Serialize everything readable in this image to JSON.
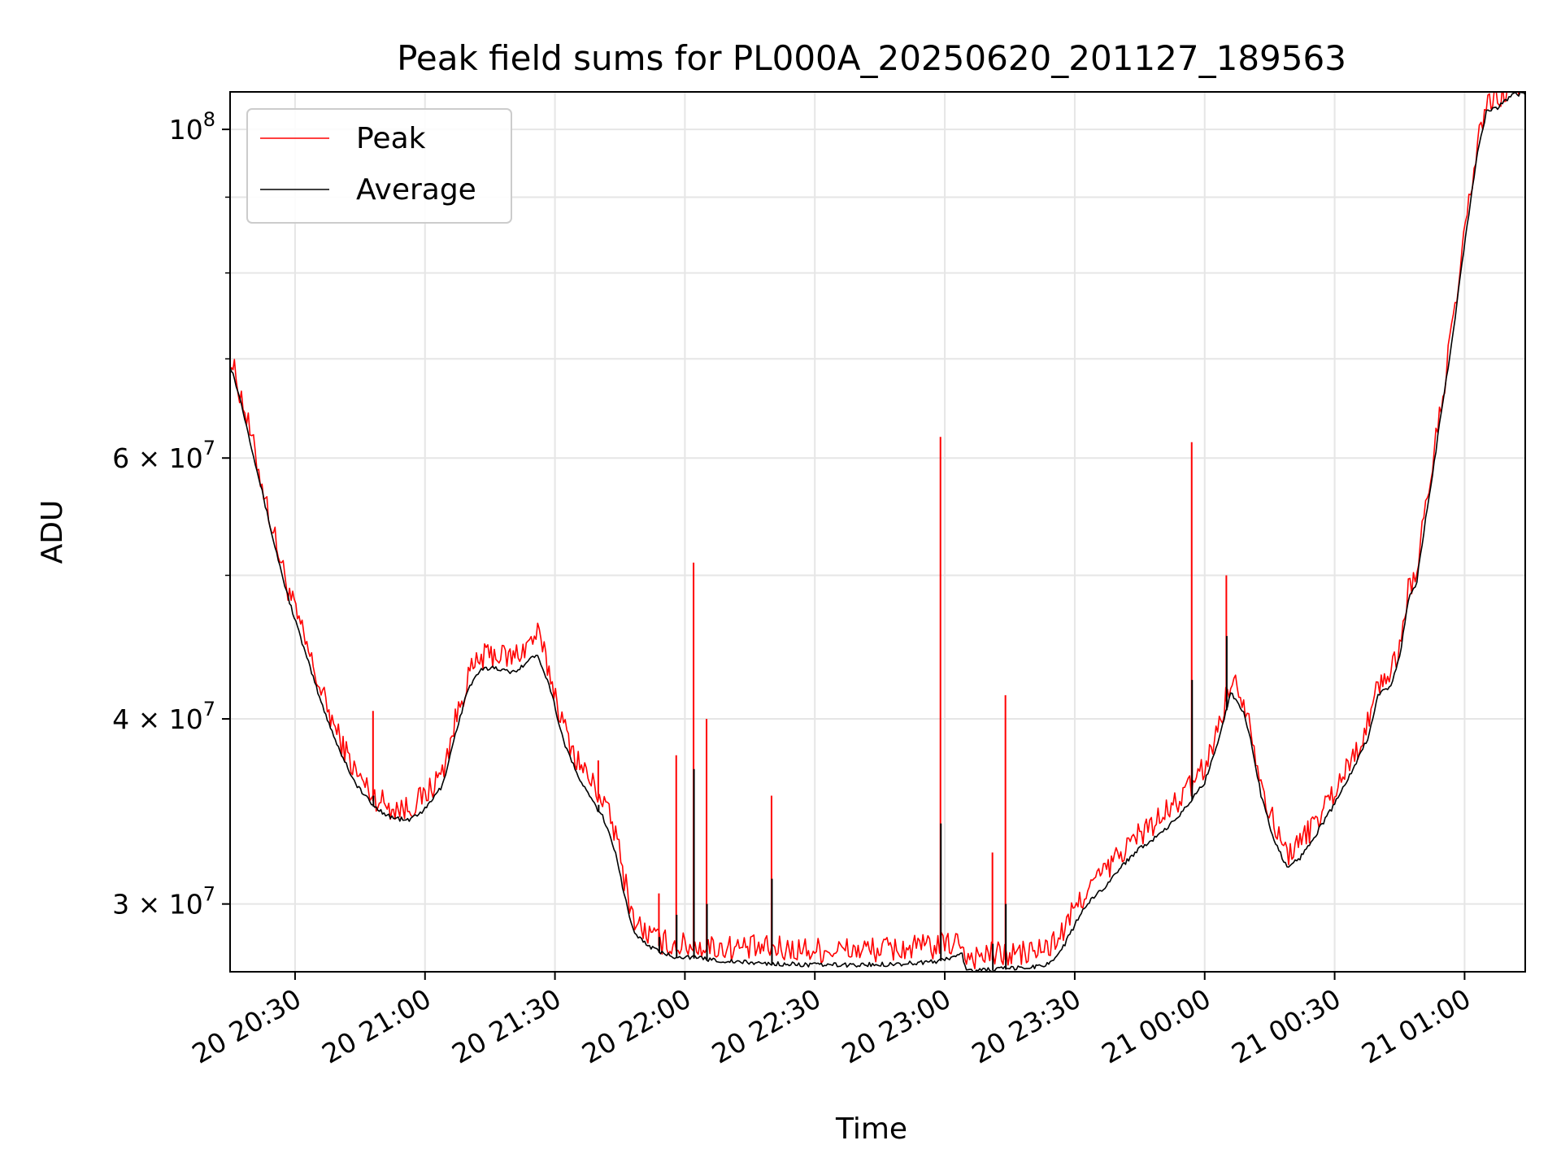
{
  "chart_data": {
    "type": "line",
    "title": "Peak field sums for PL000A_20250620_201127_189563",
    "xlabel": "Time",
    "ylabel": "ADU",
    "y_scale": "log",
    "ylim": [
      27000000,
      106000000
    ],
    "xlim": [
      "2025-06-20 20:15",
      "2025-06-21 01:14"
    ],
    "grid": true,
    "legend_position": "upper left",
    "x_ticks": [
      {
        "value": "2025-06-20 20:30",
        "label": "20 20:30"
      },
      {
        "value": "2025-06-20 21:00",
        "label": "20 21:00"
      },
      {
        "value": "2025-06-20 21:30",
        "label": "20 21:30"
      },
      {
        "value": "2025-06-20 22:00",
        "label": "20 22:00"
      },
      {
        "value": "2025-06-20 22:30",
        "label": "20 22:30"
      },
      {
        "value": "2025-06-20 23:00",
        "label": "20 23:00"
      },
      {
        "value": "2025-06-20 23:30",
        "label": "20 23:30"
      },
      {
        "value": "2025-06-21 00:00",
        "label": "21 00:00"
      },
      {
        "value": "2025-06-21 00:30",
        "label": "21 00:30"
      },
      {
        "value": "2025-06-21 01:00",
        "label": "21 01:00"
      }
    ],
    "y_major_ticks": [
      {
        "value": 30000000,
        "mant": "3",
        "exp": "7"
      },
      {
        "value": 40000000,
        "mant": "4",
        "exp": "7"
      },
      {
        "value": 60000000,
        "mant": "6",
        "exp": "7"
      },
      {
        "value": 100000000,
        "mant": "",
        "exp": "8"
      }
    ],
    "y_minor_ticks": [
      50000000,
      70000000,
      80000000,
      90000000
    ],
    "series": [
      {
        "name": "Peak",
        "color": "#ff0000",
        "points": [
          [
            "2025-06-20 20:15",
            69500000
          ],
          [
            "2025-06-20 20:16",
            68000000
          ],
          [
            "2025-06-20 20:18",
            64800000
          ],
          [
            "2025-06-20 20:20",
            61200000
          ],
          [
            "2025-06-20 20:22",
            57800000
          ],
          [
            "2025-06-20 20:25",
            53000000
          ],
          [
            "2025-06-20 20:28",
            49000000
          ],
          [
            "2025-06-20 20:32",
            45000000
          ],
          [
            "2025-06-20 20:36",
            41400000
          ],
          [
            "2025-06-20 20:40",
            38600000
          ],
          [
            "2025-06-20 20:44",
            36500000
          ],
          [
            "2025-06-20 20:48",
            35200000
          ],
          [
            "2025-06-20 20:52",
            34600000
          ],
          [
            "2025-06-20 20:56",
            34500000
          ],
          [
            "2025-06-20 21:00",
            35200000
          ],
          [
            "2025-06-20 21:04",
            36500000
          ],
          [
            "2025-06-20 21:07",
            39500000
          ],
          [
            "2025-06-20 21:10",
            42400000
          ],
          [
            "2025-06-20 21:13",
            43600000
          ],
          [
            "2025-06-20 21:16",
            43900000
          ],
          [
            "2025-06-20 21:20",
            43600000
          ],
          [
            "2025-06-20 21:23",
            44300000
          ],
          [
            "2025-06-20 21:26",
            45300000
          ],
          [
            "2025-06-20 21:29",
            42400000
          ],
          [
            "2025-06-20 21:32",
            39200000
          ],
          [
            "2025-06-20 21:35",
            37300000
          ],
          [
            "2025-06-20 21:38",
            36100000
          ],
          [
            "2025-06-20 21:41",
            35000000
          ],
          [
            "2025-06-20 21:44",
            33200000
          ],
          [
            "2025-06-20 21:46",
            31000000
          ],
          [
            "2025-06-20 21:48",
            29200000
          ],
          [
            "2025-06-20 21:50",
            28600000
          ],
          [
            "2025-06-20 21:54",
            28100000
          ],
          [
            "2025-06-20 21:58",
            27900000
          ],
          [
            "2025-06-20 22:00",
            27900000
          ],
          [
            "2025-06-20 22:05",
            27850000
          ],
          [
            "2025-06-20 22:10",
            27800000
          ],
          [
            "2025-06-20 22:20",
            27750000
          ],
          [
            "2025-06-20 22:30",
            27700000
          ],
          [
            "2025-06-20 22:40",
            27700000
          ],
          [
            "2025-06-20 22:50",
            27750000
          ],
          [
            "2025-06-20 22:58",
            27850000
          ],
          [
            "2025-06-20 23:00",
            27900000
          ],
          [
            "2025-06-20 23:04",
            28100000
          ],
          [
            "2025-06-20 23:05",
            27400000
          ],
          [
            "2025-06-20 23:10",
            27500000
          ],
          [
            "2025-06-20 23:15",
            27500000
          ],
          [
            "2025-06-20 23:20",
            27600000
          ],
          [
            "2025-06-20 23:24",
            27800000
          ],
          [
            "2025-06-20 23:27",
            28400000
          ],
          [
            "2025-06-20 23:30",
            29500000
          ],
          [
            "2025-06-20 23:33",
            30500000
          ],
          [
            "2025-06-20 23:37",
            31300000
          ],
          [
            "2025-06-20 23:41",
            32300000
          ],
          [
            "2025-06-20 23:45",
            33200000
          ],
          [
            "2025-06-20 23:50",
            34000000
          ],
          [
            "2025-06-20 23:55",
            35200000
          ],
          [
            "2025-06-21 00:00",
            36800000
          ],
          [
            "2025-06-21 00:03",
            39000000
          ],
          [
            "2025-06-21 00:06",
            42200000
          ],
          [
            "2025-06-21 00:09",
            41000000
          ],
          [
            "2025-06-21 00:11",
            38800000
          ],
          [
            "2025-06-21 00:13",
            36000000
          ],
          [
            "2025-06-21 00:16",
            33600000
          ],
          [
            "2025-06-21 00:19",
            32200000
          ],
          [
            "2025-06-21 00:22",
            32700000
          ],
          [
            "2025-06-21 00:26",
            34000000
          ],
          [
            "2025-06-21 00:30",
            35500000
          ],
          [
            "2025-06-21 00:35",
            37800000
          ],
          [
            "2025-06-21 00:38",
            39500000
          ],
          [
            "2025-06-21 00:40",
            42000000
          ],
          [
            "2025-06-21 00:43",
            42500000
          ],
          [
            "2025-06-21 00:45",
            44500000
          ],
          [
            "2025-06-21 00:47",
            48500000
          ],
          [
            "2025-06-21 00:49",
            50000000
          ],
          [
            "2025-06-21 00:51",
            55000000
          ],
          [
            "2025-06-21 00:53",
            60000000
          ],
          [
            "2025-06-21 00:55",
            66000000
          ],
          [
            "2025-06-21 00:57",
            72000000
          ],
          [
            "2025-06-21 00:59",
            80000000
          ],
          [
            "2025-06-21 01:01",
            88000000
          ],
          [
            "2025-06-21 01:03",
            97000000
          ],
          [
            "2025-06-21 01:05",
            103000000
          ],
          [
            "2025-06-21 01:08",
            104000000
          ],
          [
            "2025-06-21 01:11",
            106000000
          ],
          [
            "2025-06-21 01:14",
            106000000
          ]
        ]
      },
      {
        "name": "Average",
        "color": "#000000",
        "points": [
          [
            "2025-06-20 20:15",
            69200000
          ],
          [
            "2025-06-20 20:16",
            67800000
          ],
          [
            "2025-06-20 20:18",
            64500000
          ],
          [
            "2025-06-20 20:20",
            60900000
          ],
          [
            "2025-06-20 20:22",
            57500000
          ],
          [
            "2025-06-20 20:25",
            52700000
          ],
          [
            "2025-06-20 20:28",
            48700000
          ],
          [
            "2025-06-20 20:32",
            44600000
          ],
          [
            "2025-06-20 20:36",
            41000000
          ],
          [
            "2025-06-20 20:40",
            38200000
          ],
          [
            "2025-06-20 20:44",
            36100000
          ],
          [
            "2025-06-20 20:48",
            34900000
          ],
          [
            "2025-06-20 20:52",
            34300000
          ],
          [
            "2025-06-20 20:56",
            34100000
          ],
          [
            "2025-06-20 21:00",
            34700000
          ],
          [
            "2025-06-20 21:04",
            36000000
          ],
          [
            "2025-06-20 21:07",
            39000000
          ],
          [
            "2025-06-20 21:10",
            41900000
          ],
          [
            "2025-06-20 21:13",
            43100000
          ],
          [
            "2025-06-20 21:16",
            43300000
          ],
          [
            "2025-06-20 21:20",
            42900000
          ],
          [
            "2025-06-20 21:23",
            43500000
          ],
          [
            "2025-06-20 21:26",
            44200000
          ],
          [
            "2025-06-20 21:29",
            41800000
          ],
          [
            "2025-06-20 21:32",
            38600000
          ],
          [
            "2025-06-20 21:35",
            36700000
          ],
          [
            "2025-06-20 21:38",
            35400000
          ],
          [
            "2025-06-20 21:41",
            34300000
          ],
          [
            "2025-06-20 21:44",
            32500000
          ],
          [
            "2025-06-20 21:46",
            30400000
          ],
          [
            "2025-06-20 21:48",
            28800000
          ],
          [
            "2025-06-20 21:50",
            28300000
          ],
          [
            "2025-06-20 21:54",
            27800000
          ],
          [
            "2025-06-20 21:58",
            27600000
          ],
          [
            "2025-06-20 22:00",
            27600000
          ],
          [
            "2025-06-20 22:05",
            27500000
          ],
          [
            "2025-06-20 22:10",
            27400000
          ],
          [
            "2025-06-20 22:20",
            27300000
          ],
          [
            "2025-06-20 22:30",
            27250000
          ],
          [
            "2025-06-20 22:40",
            27250000
          ],
          [
            "2025-06-20 22:50",
            27300000
          ],
          [
            "2025-06-20 22:58",
            27400000
          ],
          [
            "2025-06-20 23:00",
            27500000
          ],
          [
            "2025-06-20 23:04",
            27700000
          ],
          [
            "2025-06-20 23:05",
            27000000
          ],
          [
            "2025-06-20 23:10",
            27050000
          ],
          [
            "2025-06-20 23:15",
            27100000
          ],
          [
            "2025-06-20 23:20",
            27150000
          ],
          [
            "2025-06-20 23:24",
            27300000
          ],
          [
            "2025-06-20 23:27",
            27900000
          ],
          [
            "2025-06-20 23:30",
            29000000
          ],
          [
            "2025-06-20 23:33",
            30000000
          ],
          [
            "2025-06-20 23:37",
            30800000
          ],
          [
            "2025-06-20 23:41",
            31800000
          ],
          [
            "2025-06-20 23:45",
            32700000
          ],
          [
            "2025-06-20 23:50",
            33400000
          ],
          [
            "2025-06-20 23:55",
            34600000
          ],
          [
            "2025-06-21 00:00",
            36200000
          ],
          [
            "2025-06-21 00:03",
            38500000
          ],
          [
            "2025-06-21 00:06",
            41600000
          ],
          [
            "2025-06-21 00:09",
            40400000
          ],
          [
            "2025-06-21 00:11",
            38200000
          ],
          [
            "2025-06-21 00:13",
            35500000
          ],
          [
            "2025-06-21 00:16",
            33100000
          ],
          [
            "2025-06-21 00:19",
            31700000
          ],
          [
            "2025-06-21 00:22",
            32200000
          ],
          [
            "2025-06-21 00:26",
            33500000
          ],
          [
            "2025-06-21 00:30",
            35000000
          ],
          [
            "2025-06-21 00:35",
            37300000
          ],
          [
            "2025-06-21 00:38",
            39000000
          ],
          [
            "2025-06-21 00:40",
            41500000
          ],
          [
            "2025-06-21 00:43",
            42000000
          ],
          [
            "2025-06-21 00:45",
            44000000
          ],
          [
            "2025-06-21 00:47",
            48000000
          ],
          [
            "2025-06-21 00:49",
            49500000
          ],
          [
            "2025-06-21 00:51",
            54500000
          ],
          [
            "2025-06-21 00:53",
            59500000
          ],
          [
            "2025-06-21 00:55",
            65500000
          ],
          [
            "2025-06-21 00:57",
            71500000
          ],
          [
            "2025-06-21 00:59",
            79500000
          ],
          [
            "2025-06-21 01:01",
            87500000
          ],
          [
            "2025-06-21 01:03",
            96500000
          ],
          [
            "2025-06-21 01:05",
            102500000
          ],
          [
            "2025-06-21 01:08",
            103500000
          ],
          [
            "2025-06-21 01:11",
            105500000
          ],
          [
            "2025-06-21 01:14",
            105500000
          ]
        ]
      }
    ],
    "spikes": [
      {
        "time": "2025-06-20 20:48",
        "peak": 40500000,
        "average": 35500000
      },
      {
        "time": "2025-06-20 21:40",
        "peak": 37500000,
        "average": 35000000
      },
      {
        "time": "2025-06-20 21:54",
        "peak": 30500000,
        "average": 28500000
      },
      {
        "time": "2025-06-20 21:58",
        "peak": 37800000,
        "average": 29500000
      },
      {
        "time": "2025-06-20 22:02",
        "peak": 51000000,
        "average": 37000000
      },
      {
        "time": "2025-06-20 22:05",
        "peak": 40000000,
        "average": 30000000
      },
      {
        "time": "2025-06-20 22:20",
        "peak": 35500000,
        "average": 31200000
      },
      {
        "time": "2025-06-20 22:59",
        "peak": 62000000,
        "average": 34000000
      },
      {
        "time": "2025-06-20 23:11",
        "peak": 32500000,
        "average": 28200000
      },
      {
        "time": "2025-06-20 23:14",
        "peak": 41500000,
        "average": 30000000
      },
      {
        "time": "2025-06-20 23:57",
        "peak": 61500000,
        "average": 42500000
      },
      {
        "time": "2025-06-21 00:05",
        "peak": 50000000,
        "average": 45500000
      }
    ]
  }
}
